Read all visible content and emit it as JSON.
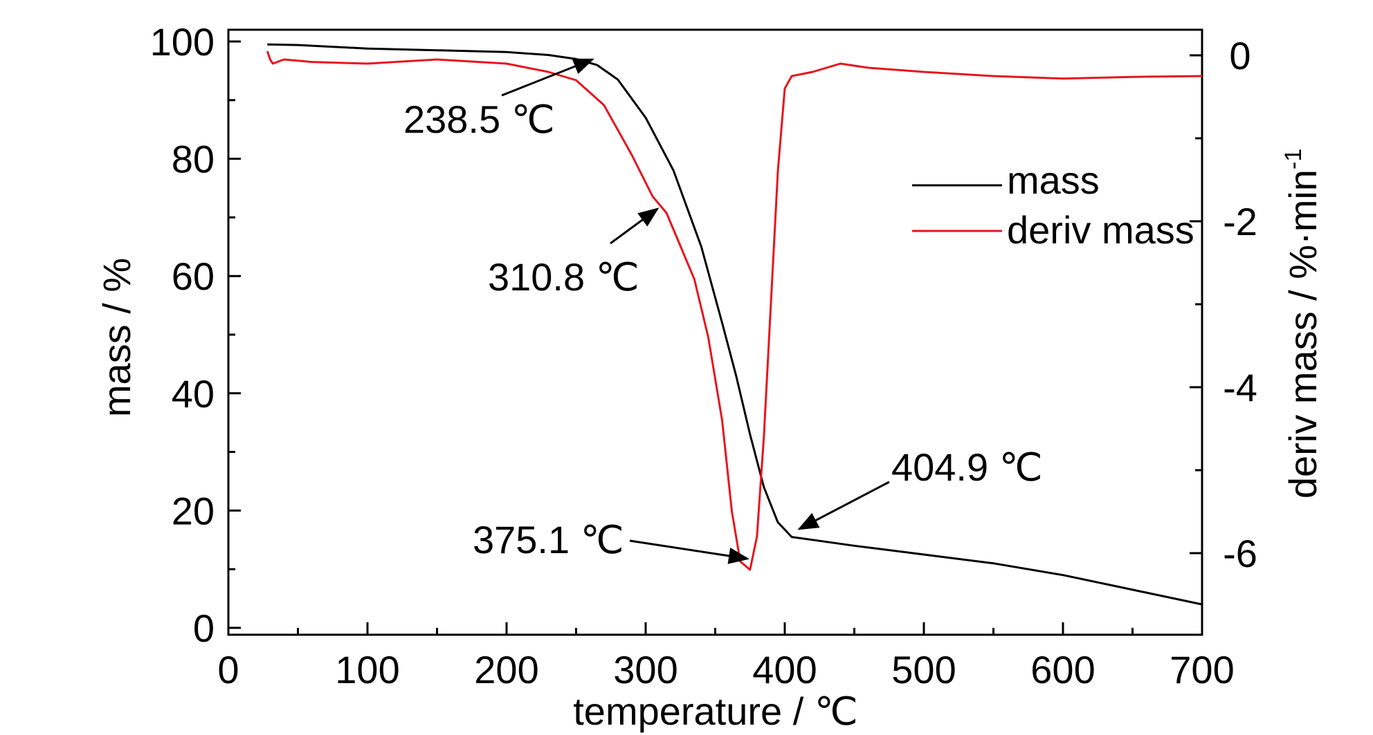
{
  "chart_data": {
    "type": "line",
    "xlabel": "temperature / ℃",
    "ylabel_left": "mass / %",
    "ylabel_right": "deriv mass / %·min",
    "ylabel_right_sup": "-1",
    "xlim": [
      0,
      700
    ],
    "ylim_left": [
      0,
      100
    ],
    "ylim_right": [
      -7.0,
      0.4
    ],
    "xticks": [
      "0",
      "100",
      "200",
      "300",
      "400",
      "500",
      "600",
      "700"
    ],
    "yticks_left": [
      "0",
      "20",
      "40",
      "60",
      "80",
      "100"
    ],
    "yticks_right": [
      "0",
      "-2",
      "-4",
      "-6"
    ],
    "grid": false,
    "legend_position": "right",
    "series": [
      {
        "name": "mass",
        "axis": "left",
        "color": "#000000",
        "x": [
          28,
          50,
          100,
          150,
          200,
          230,
          250,
          265,
          280,
          300,
          320,
          340,
          355,
          365,
          375,
          385,
          395,
          405,
          420,
          450,
          500,
          550,
          600,
          650,
          700
        ],
        "y": [
          99.5,
          99.4,
          98.8,
          98.5,
          98.2,
          97.7,
          97.0,
          96.0,
          93.5,
          87.0,
          78.0,
          65.0,
          52.0,
          43.0,
          33.0,
          24.0,
          18.0,
          15.5,
          15.0,
          14.0,
          12.5,
          11.0,
          9.0,
          6.5,
          4.0
        ]
      },
      {
        "name": "deriv mass",
        "axis": "right",
        "color": "#e8141e",
        "x": [
          28,
          30,
          32,
          40,
          60,
          100,
          150,
          200,
          230,
          250,
          270,
          290,
          305,
          315,
          325,
          335,
          345,
          355,
          362,
          368,
          375,
          380,
          385,
          390,
          395,
          400,
          405,
          420,
          440,
          460,
          500,
          550,
          600,
          650,
          700
        ],
        "y": [
          0.05,
          -0.05,
          -0.1,
          -0.05,
          -0.08,
          -0.1,
          -0.05,
          -0.1,
          -0.2,
          -0.3,
          -0.6,
          -1.2,
          -1.7,
          -1.9,
          -2.3,
          -2.7,
          -3.4,
          -4.4,
          -5.5,
          -6.1,
          -6.2,
          -5.8,
          -4.6,
          -3.0,
          -1.4,
          -0.4,
          -0.25,
          -0.2,
          -0.1,
          -0.15,
          -0.2,
          -0.25,
          -0.28,
          -0.26,
          -0.25
        ]
      }
    ],
    "annotations": [
      {
        "label": "238.5 ℃"
      },
      {
        "label": "310.8 ℃"
      },
      {
        "label": "375.1 ℃"
      },
      {
        "label": "404.9 ℃"
      }
    ]
  }
}
